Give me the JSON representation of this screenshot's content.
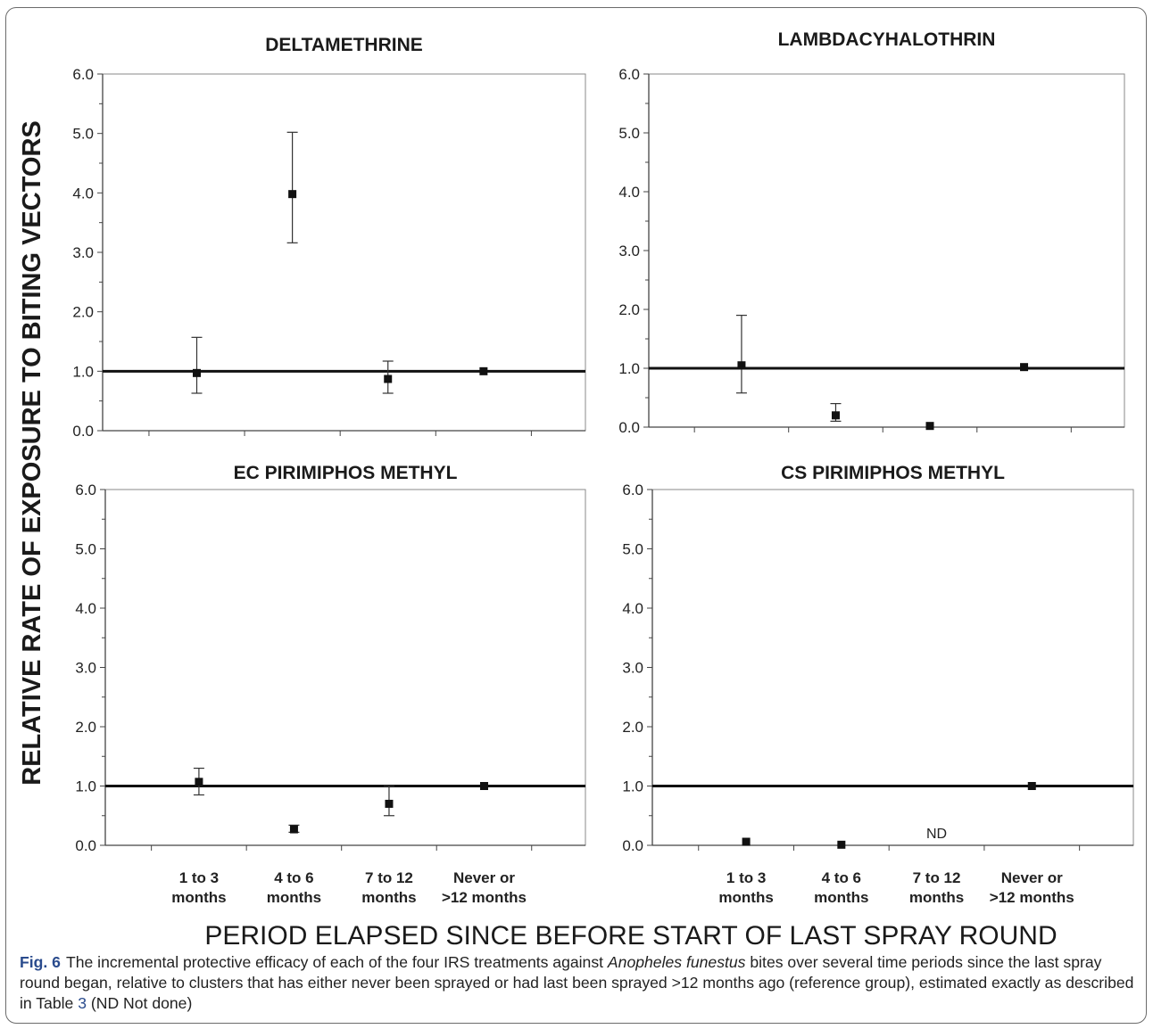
{
  "chart_data": {
    "type": "scatter",
    "ylabel": "RELATIVE RATE OF EXPOSURE TO BITING VECTORS",
    "xlabel": "PERIOD ELAPSED SINCE BEFORE START OF LAST SPRAY ROUND",
    "ylim": [
      0,
      6
    ],
    "yticks": [
      "0.0",
      "1.0",
      "2.0",
      "3.0",
      "4.0",
      "5.0",
      "6.0"
    ],
    "reference_line": 1.0,
    "categories": [
      {
        "line1": "1 to 3",
        "line2": "months"
      },
      {
        "line1": "4 to 6",
        "line2": "months"
      },
      {
        "line1": "7 to 12",
        "line2": "months"
      },
      {
        "line1": "Never or",
        "line2": ">12 months"
      }
    ],
    "panels": [
      {
        "title": "DELTAMETHRINE",
        "points": [
          {
            "category": "1 to 3 months",
            "value": 0.97,
            "lower": 0.63,
            "upper": 1.57
          },
          {
            "category": "4 to 6 months",
            "value": 3.98,
            "lower": 3.16,
            "upper": 5.02
          },
          {
            "category": "7 to 12 months",
            "value": 0.87,
            "lower": 0.63,
            "upper": 1.17
          },
          {
            "category": "Never or >12 months",
            "value": 1.0,
            "lower": null,
            "upper": null
          }
        ]
      },
      {
        "title": "LAMBDACYHALOTHRIN",
        "points": [
          {
            "category": "1 to 3 months",
            "value": 1.05,
            "lower": 0.58,
            "upper": 1.9
          },
          {
            "category": "4 to 6 months",
            "value": 0.2,
            "lower": 0.1,
            "upper": 0.4
          },
          {
            "category": "7 to 12 months",
            "value": 0.02,
            "lower": null,
            "upper": null
          },
          {
            "category": "Never or >12 months",
            "value": 1.02,
            "lower": null,
            "upper": null
          }
        ]
      },
      {
        "title": "EC PIRIMIPHOS METHYL",
        "points": [
          {
            "category": "1 to 3 months",
            "value": 1.07,
            "lower": 0.85,
            "upper": 1.3
          },
          {
            "category": "4 to 6 months",
            "value": 0.27,
            "lower": 0.22,
            "upper": 0.34
          },
          {
            "category": "7 to 12 months",
            "value": 0.7,
            "lower": 0.5,
            "upper": 1.0
          },
          {
            "category": "Never or >12 months",
            "value": 1.0,
            "lower": null,
            "upper": null
          }
        ]
      },
      {
        "title": "CS PIRIMIPHOS METHYL",
        "points": [
          {
            "category": "1 to 3 months",
            "value": 0.06,
            "lower": null,
            "upper": null
          },
          {
            "category": "4 to 6 months",
            "value": 0.01,
            "lower": null,
            "upper": null
          },
          {
            "category": "Never or >12 months",
            "value": 1.0,
            "lower": null,
            "upper": null
          }
        ],
        "annotation": "ND"
      }
    ]
  },
  "caption": {
    "label": "Fig. 6",
    "text_before": "The incremental protective efficacy of each of the four IRS treatments against ",
    "species": "Anopheles funestus",
    "text_after": " bites over several time periods since the last spray round began, relative to clusters that has either never been sprayed or had last been sprayed >12 months ago (reference group), estimated exactly as described in Table ",
    "table_ref": "3",
    "text_end": " (ND Not done)"
  }
}
